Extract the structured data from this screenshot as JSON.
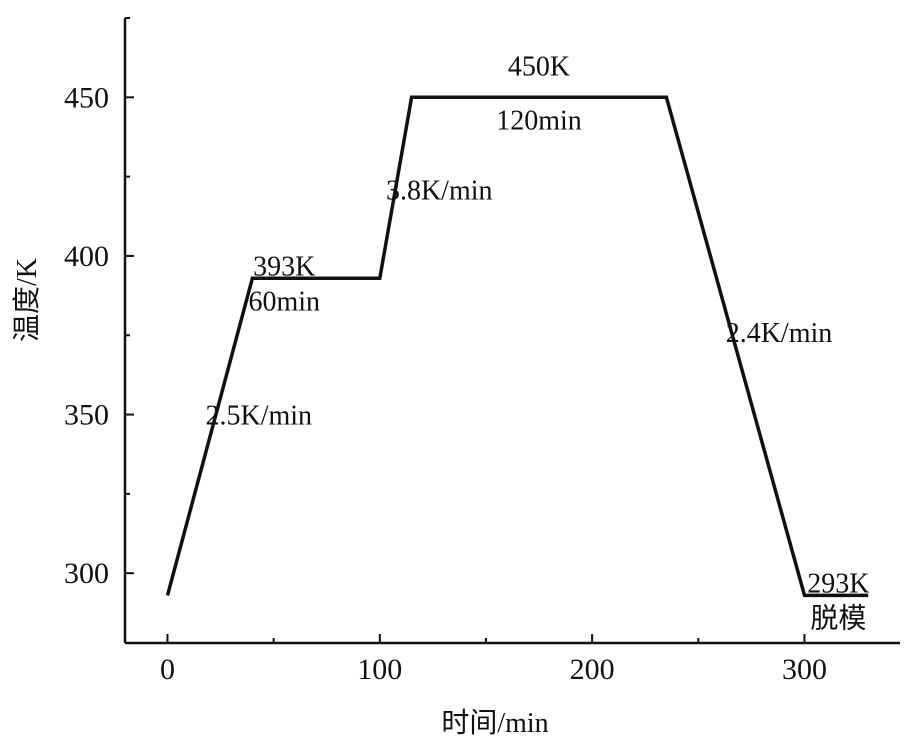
{
  "chart_data": {
    "type": "line",
    "title": "",
    "xlabel": "时间/min",
    "ylabel": "温度/K",
    "xlim": [
      -20,
      345
    ],
    "ylim": [
      278,
      475
    ],
    "x_ticks": [
      0,
      100,
      200,
      300
    ],
    "y_ticks": [
      300,
      350,
      400,
      450
    ],
    "grid": false,
    "series": [
      {
        "x": [
          0,
          40,
          100,
          115,
          235,
          300,
          330
        ],
        "y": [
          293,
          393,
          393,
          450,
          450,
          293,
          293
        ]
      }
    ],
    "annotations": [
      {
        "text": "2.5K/min",
        "x": 43,
        "y": 350
      },
      {
        "text": "393K",
        "x": 55,
        "y": 397
      },
      {
        "text": "60min",
        "x": 55,
        "y": 386
      },
      {
        "text": "3.8K/min",
        "x": 128,
        "y": 421
      },
      {
        "text": "450K",
        "x": 175,
        "y": 460
      },
      {
        "text": "120min",
        "x": 175,
        "y": 443
      },
      {
        "text": "2.4K/min",
        "x": 288,
        "y": 376
      },
      {
        "text": "293K",
        "x": 316,
        "y": 297
      },
      {
        "text": "脱模",
        "x": 316,
        "y": 286
      }
    ]
  }
}
